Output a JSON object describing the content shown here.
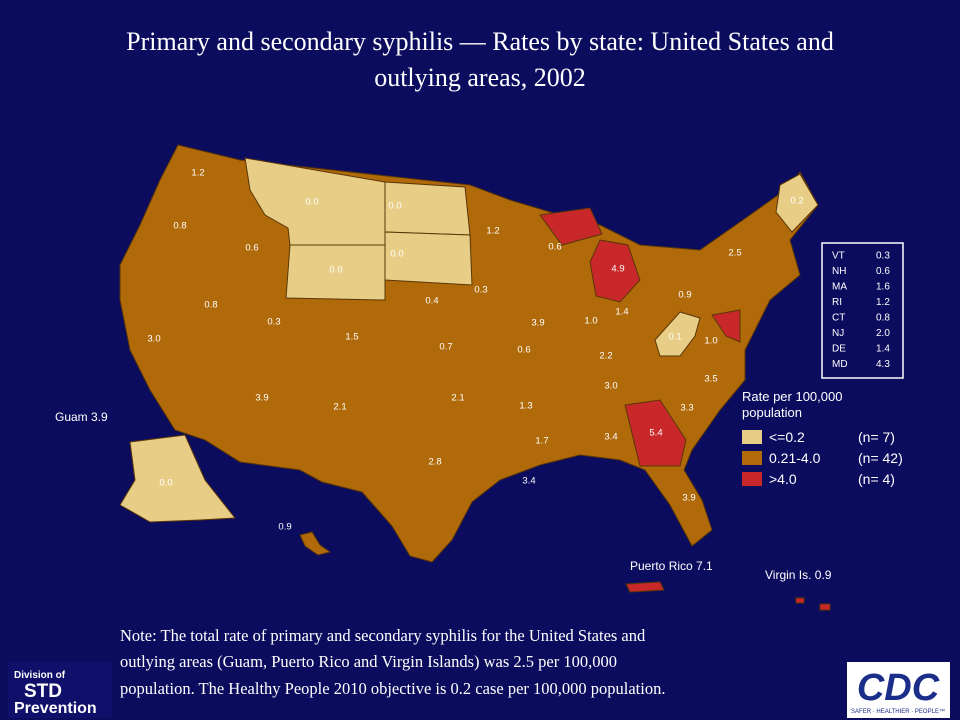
{
  "title": [
    "Primary and secondary syphilis — Rates by state: United States and",
    "outlying  areas, 2002"
  ],
  "state_rates": [
    "1.2",
    "0.8",
    "0.6",
    "0.0",
    "0.0",
    "1.2",
    "0.0",
    "0.6",
    "4.9",
    "0.0",
    "0.4",
    "0.3",
    "0.8",
    "0.3",
    "1.5",
    "3.9",
    "1.0",
    "1.4",
    "0.9",
    "2.5",
    "3.0",
    "0.7",
    "0.6",
    "2.2",
    "0.1",
    "1.0",
    "3.9",
    "2.1",
    "2.1",
    "1.3",
    "3.0",
    "3.5",
    "3.3",
    "2.8",
    "1.7",
    "3.4",
    "5.4",
    "3.4",
    "3.9",
    "0.0",
    "0.9",
    "0.2"
  ],
  "outlying": [
    "Guam 3.9",
    "Puerto Rico 7.1",
    "Virgin Is. 0.9"
  ],
  "inset_table": {
    "rows": [
      [
        "VT",
        "0.3"
      ],
      [
        "NH",
        "0.6"
      ],
      [
        "MA",
        "1.6"
      ],
      [
        "RI",
        "1.2"
      ],
      [
        "CT",
        "0.8"
      ],
      [
        "NJ",
        "2.0"
      ],
      [
        "DE",
        "1.4"
      ],
      [
        "MD",
        "4.3"
      ]
    ]
  },
  "legend": {
    "title": [
      "Rate per 100,000",
      "population"
    ],
    "items": [
      {
        "label": "<=0.2",
        "count": "(n= 7)",
        "color": "#e8cd86"
      },
      {
        "label": "0.21-4.0",
        "count": "(n= 42)",
        "color": "#b06a0a"
      },
      {
        "label": ">4.0",
        "count": "(n= 4)",
        "color": "#c8282a"
      }
    ]
  },
  "note": [
    "Note: The total rate of primary and secondary syphilis for the United States and",
    "outlying areas (Guam, Puerto Rico and Virgin Islands) was 2.5 per 100,000",
    "population. The Healthy People 2010 objective is 0.2 case per 100,000 population."
  ],
  "logo_left": {
    "line1": "Division of",
    "line2": "STD",
    "line3": "Prevention"
  },
  "logo_right": {
    "name": "CDC",
    "tagline": "SAFER · HEALTHIER · PEOPLE™"
  }
}
